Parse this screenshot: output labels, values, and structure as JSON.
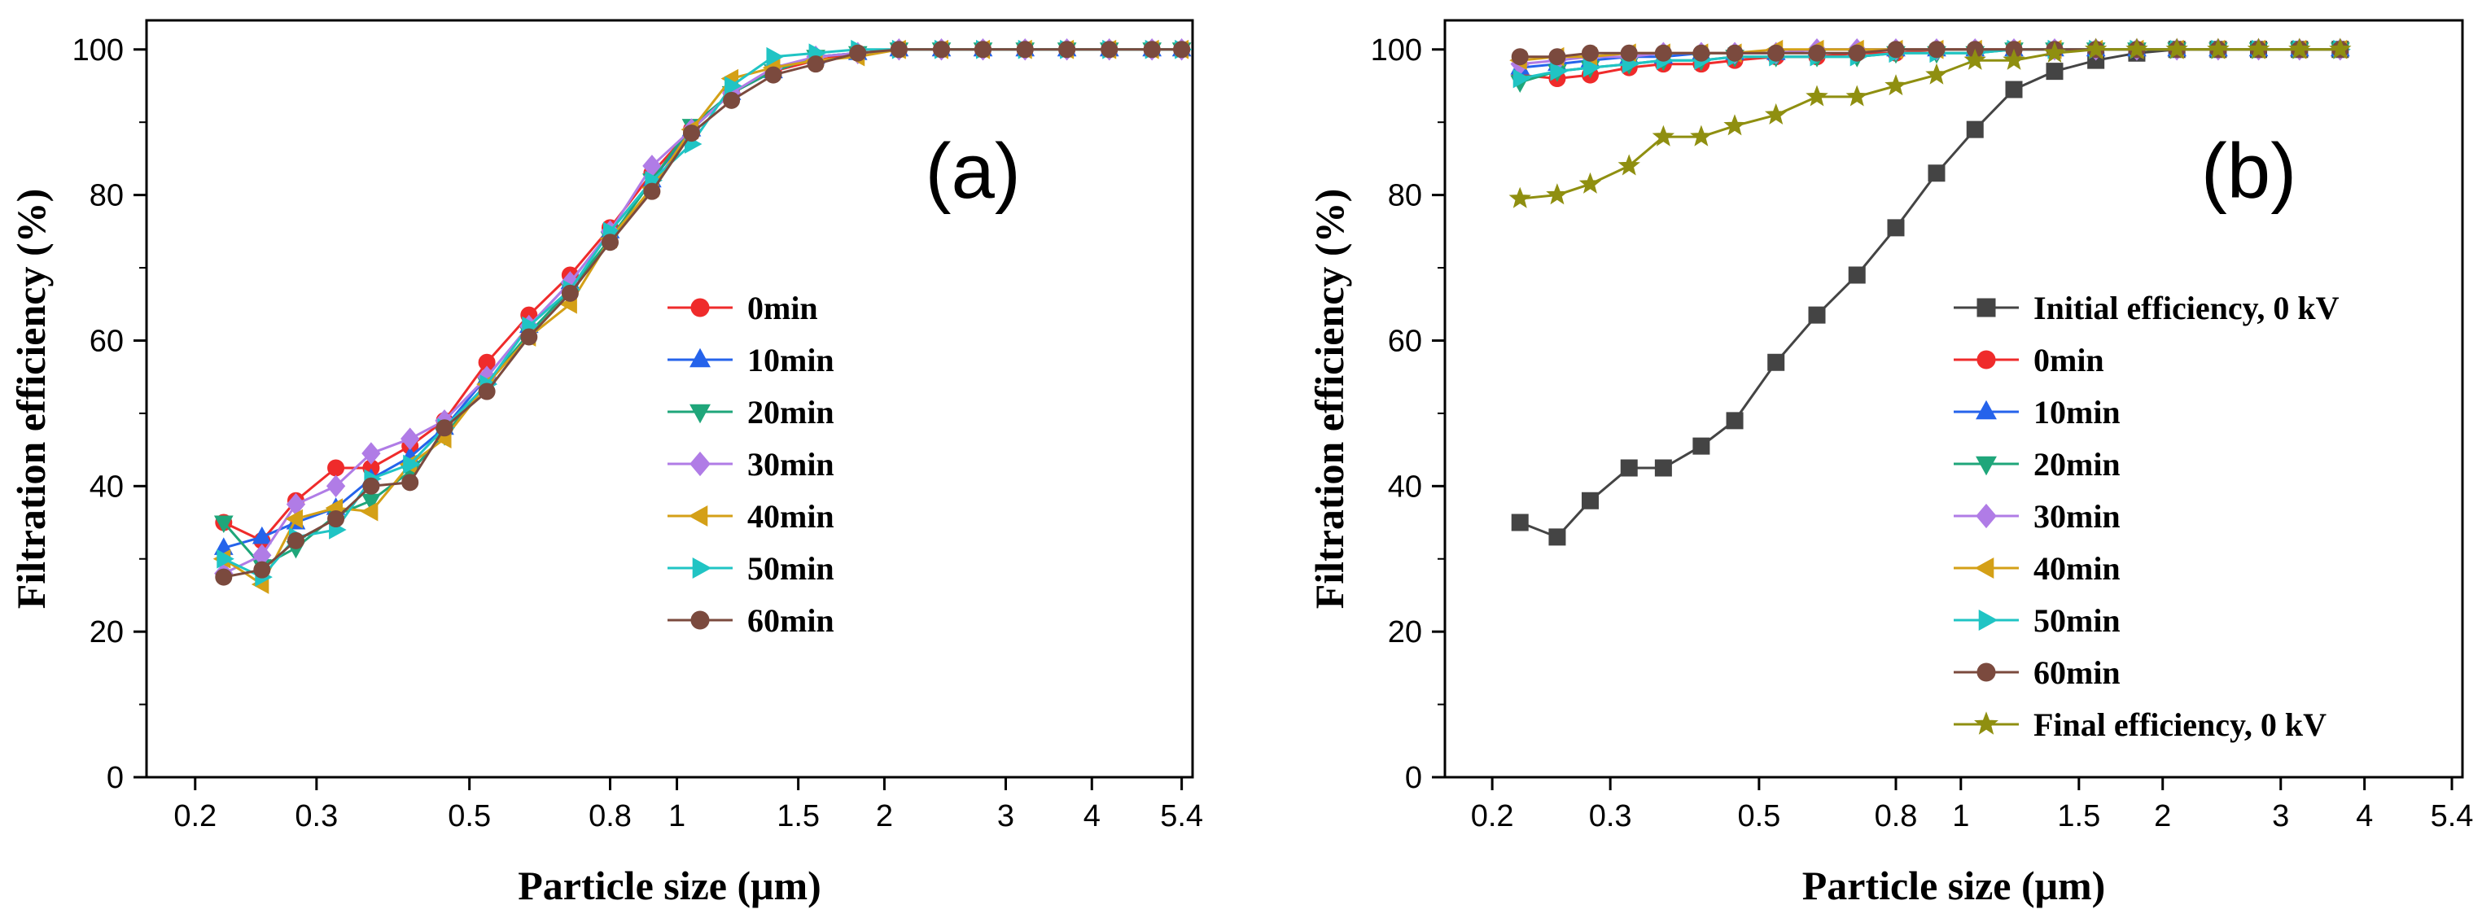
{
  "chart_data": [
    {
      "type": "line",
      "panel_label": "(a)",
      "xlabel": "Particle size (μm)",
      "ylabel": "Filtration efficiency (%)",
      "xscale": "log",
      "xlim": [
        0.17,
        5.6
      ],
      "ylim": [
        0,
        104
      ],
      "xticks": [
        0.2,
        0.3,
        0.5,
        0.8,
        1,
        1.5,
        2,
        3,
        4,
        5.4
      ],
      "xtick_labels": [
        "0.2",
        "0.3",
        "0.5",
        "0.8",
        "1",
        "1.5",
        "2",
        "3",
        "4",
        "5.4"
      ],
      "yticks": [
        0,
        20,
        40,
        60,
        80,
        100
      ],
      "ytick_labels": [
        "0",
        "20",
        "40",
        "60",
        "80",
        "100"
      ],
      "legend_position": "center-right",
      "series": [
        {
          "name": "0min",
          "color": "#ef2b2b",
          "marker": "circle",
          "x": [
            0.22,
            0.25,
            0.28,
            0.32,
            0.36,
            0.41,
            0.46,
            0.53,
            0.61,
            0.7,
            0.8,
            0.92,
            1.05,
            1.2,
            1.38,
            1.59,
            1.83,
            2.1,
            2.42,
            2.78,
            3.2,
            3.68,
            4.24,
            4.89,
            5.4
          ],
          "y": [
            35,
            32.5,
            38,
            42.5,
            42.5,
            45.5,
            49,
            57,
            63.5,
            69,
            75.5,
            83,
            89,
            94,
            97,
            98.5,
            99.5,
            100,
            100,
            100,
            100,
            100,
            100,
            100,
            100
          ]
        },
        {
          "name": "10min",
          "color": "#2563eb",
          "marker": "triangle-up",
          "x": [
            0.22,
            0.25,
            0.28,
            0.32,
            0.36,
            0.41,
            0.46,
            0.53,
            0.61,
            0.7,
            0.8,
            0.92,
            1.05,
            1.2,
            1.38,
            1.59,
            1.83,
            2.1,
            2.42,
            2.78,
            3.2,
            3.68,
            4.24,
            4.89,
            5.4
          ],
          "y": [
            31.5,
            33,
            35,
            37,
            41,
            44,
            48,
            55,
            62,
            68,
            75,
            82,
            89,
            94,
            97,
            99,
            99.5,
            100,
            100,
            100,
            100,
            100,
            100,
            100,
            100
          ]
        },
        {
          "name": "20min",
          "color": "#1fa67a",
          "marker": "triangle-down",
          "x": [
            0.22,
            0.25,
            0.28,
            0.32,
            0.36,
            0.41,
            0.46,
            0.53,
            0.61,
            0.7,
            0.8,
            0.92,
            1.05,
            1.2,
            1.38,
            1.59,
            1.83,
            2.1,
            2.42,
            2.78,
            3.2,
            3.68,
            4.24,
            4.89,
            5.4
          ],
          "y": [
            35,
            29,
            31.5,
            36,
            38,
            42,
            47,
            54,
            61,
            67,
            74,
            82,
            89.5,
            94,
            97,
            99,
            99.5,
            100,
            100,
            100,
            100,
            100,
            100,
            100,
            100
          ]
        },
        {
          "name": "30min",
          "color": "#b07ce6",
          "marker": "diamond",
          "x": [
            0.22,
            0.25,
            0.28,
            0.32,
            0.36,
            0.41,
            0.46,
            0.53,
            0.61,
            0.7,
            0.8,
            0.92,
            1.05,
            1.2,
            1.38,
            1.59,
            1.83,
            2.1,
            2.42,
            2.78,
            3.2,
            3.68,
            4.24,
            4.89,
            5.4
          ],
          "y": [
            28,
            30.5,
            37.5,
            40,
            44.5,
            46.5,
            49,
            55,
            62,
            68,
            75,
            84,
            89,
            94,
            97.5,
            99,
            99.5,
            100,
            100,
            100,
            100,
            100,
            100,
            100,
            100
          ]
        },
        {
          "name": "40min",
          "color": "#d4a017",
          "marker": "triangle-left",
          "x": [
            0.22,
            0.25,
            0.28,
            0.32,
            0.36,
            0.41,
            0.46,
            0.53,
            0.61,
            0.7,
            0.8,
            0.92,
            1.05,
            1.2,
            1.38,
            1.59,
            1.83,
            2.1,
            2.42,
            2.78,
            3.2,
            3.68,
            4.24,
            4.89,
            5.4
          ],
          "y": [
            30,
            26.5,
            35.5,
            37,
            36.5,
            43,
            46.5,
            54,
            60.5,
            65,
            74,
            81,
            89,
            96,
            97.5,
            98.5,
            99,
            100,
            100,
            100,
            100,
            100,
            100,
            100,
            100
          ]
        },
        {
          "name": "50min",
          "color": "#20c4c4",
          "marker": "triangle-right",
          "x": [
            0.22,
            0.25,
            0.28,
            0.32,
            0.36,
            0.41,
            0.46,
            0.53,
            0.61,
            0.7,
            0.8,
            0.92,
            1.05,
            1.2,
            1.38,
            1.59,
            1.83,
            2.1,
            2.42,
            2.78,
            3.2,
            3.68,
            4.24,
            4.89,
            5.4
          ],
          "y": [
            30,
            27.5,
            33,
            34,
            41,
            43,
            48,
            54,
            62,
            67,
            75,
            82,
            87,
            95,
            99,
            99.5,
            100,
            100,
            100,
            100,
            100,
            100,
            100,
            100,
            100
          ]
        },
        {
          "name": "60min",
          "color": "#7b4a3e",
          "marker": "circle",
          "x": [
            0.22,
            0.25,
            0.28,
            0.32,
            0.36,
            0.41,
            0.46,
            0.53,
            0.61,
            0.7,
            0.8,
            0.92,
            1.05,
            1.2,
            1.38,
            1.59,
            1.83,
            2.1,
            2.42,
            2.78,
            3.2,
            3.68,
            4.24,
            4.89,
            5.4
          ],
          "y": [
            27.5,
            28.5,
            32.5,
            35.5,
            40,
            40.5,
            48,
            53,
            60.5,
            66.5,
            73.5,
            80.5,
            88.5,
            93,
            96.5,
            98,
            99.5,
            100,
            100,
            100,
            100,
            100,
            100,
            100,
            100
          ]
        }
      ]
    },
    {
      "type": "line",
      "panel_label": "(b)",
      "xlabel": "Particle size (μm)",
      "ylabel": "Filtration efficiency (%)",
      "xscale": "log",
      "xlim": [
        0.17,
        5.6
      ],
      "ylim": [
        0,
        104
      ],
      "xticks": [
        0.2,
        0.3,
        0.5,
        0.8,
        1,
        1.5,
        2,
        3,
        4,
        5.4
      ],
      "xtick_labels": [
        "0.2",
        "0.3",
        "0.5",
        "0.8",
        "1",
        "1.5",
        "2",
        "3",
        "4",
        "5.4"
      ],
      "yticks": [
        0,
        20,
        40,
        60,
        80,
        100
      ],
      "ytick_labels": [
        "0",
        "20",
        "40",
        "60",
        "80",
        "100"
      ],
      "legend_position": "bottom-right",
      "series": [
        {
          "name": "Initial efficiency, 0 kV",
          "color": "#444444",
          "marker": "square",
          "x": [
            0.22,
            0.25,
            0.28,
            0.32,
            0.36,
            0.41,
            0.46,
            0.53,
            0.61,
            0.7,
            0.8,
            0.92,
            1.05,
            1.2,
            1.38,
            1.59,
            1.83,
            2.1,
            2.42,
            2.78,
            3.2,
            3.68
          ],
          "y": [
            35,
            33,
            38,
            42.5,
            42.5,
            45.5,
            49,
            57,
            63.5,
            69,
            75.5,
            83,
            89,
            94.5,
            97,
            98.5,
            99.5,
            100,
            100,
            100,
            100,
            100
          ]
        },
        {
          "name": "0min",
          "color": "#ef2b2b",
          "marker": "circle",
          "x": [
            0.22,
            0.25,
            0.28,
            0.32,
            0.36,
            0.41,
            0.46,
            0.53,
            0.61,
            0.7,
            0.8,
            0.92,
            1.05,
            1.2,
            1.38,
            1.59,
            1.83,
            2.1,
            2.42,
            2.78,
            3.2,
            3.68
          ],
          "y": [
            96.5,
            96,
            96.5,
            97.5,
            98,
            98,
            98.5,
            99,
            99,
            99.5,
            99.5,
            100,
            100,
            100,
            100,
            100,
            100,
            100,
            100,
            100,
            100,
            100
          ]
        },
        {
          "name": "10min",
          "color": "#2563eb",
          "marker": "triangle-up",
          "x": [
            0.22,
            0.25,
            0.28,
            0.32,
            0.36,
            0.41,
            0.46,
            0.53,
            0.61,
            0.7,
            0.8,
            0.92,
            1.05,
            1.2,
            1.38,
            1.59,
            1.83,
            2.1,
            2.42,
            2.78,
            3.2,
            3.68
          ],
          "y": [
            97.5,
            98,
            98.5,
            99,
            99,
            99.5,
            99.5,
            99.5,
            100,
            100,
            100,
            100,
            100,
            100,
            100,
            100,
            100,
            100,
            100,
            100,
            100,
            100
          ]
        },
        {
          "name": "20min",
          "color": "#1fa67a",
          "marker": "triangle-down",
          "x": [
            0.22,
            0.25,
            0.28,
            0.32,
            0.36,
            0.41,
            0.46,
            0.53,
            0.61,
            0.7,
            0.8,
            0.92,
            1.05,
            1.2,
            1.38,
            1.59,
            1.83,
            2.1,
            2.42,
            2.78,
            3.2,
            3.68
          ],
          "y": [
            95.5,
            97,
            97.5,
            98,
            98.5,
            98.5,
            99,
            99,
            99,
            99,
            99.5,
            99.5,
            99.5,
            100,
            100,
            100,
            100,
            100,
            100,
            100,
            100,
            100
          ]
        },
        {
          "name": "30min",
          "color": "#b07ce6",
          "marker": "diamond",
          "x": [
            0.22,
            0.25,
            0.28,
            0.32,
            0.36,
            0.41,
            0.46,
            0.53,
            0.61,
            0.7,
            0.8,
            0.92,
            1.05,
            1.2,
            1.38,
            1.59,
            1.83,
            2.1,
            2.42,
            2.78,
            3.2,
            3.68
          ],
          "y": [
            98,
            98.5,
            99,
            99,
            99.5,
            99.5,
            99.5,
            99.5,
            100,
            100,
            100,
            100,
            100,
            100,
            100,
            100,
            100,
            100,
            100,
            100,
            100,
            100
          ]
        },
        {
          "name": "40min",
          "color": "#d4a017",
          "marker": "triangle-left",
          "x": [
            0.22,
            0.25,
            0.28,
            0.32,
            0.36,
            0.41,
            0.46,
            0.53,
            0.61,
            0.7,
            0.8,
            0.92,
            1.05,
            1.2,
            1.38,
            1.59,
            1.83,
            2.1,
            2.42,
            2.78,
            3.2,
            3.68
          ],
          "y": [
            98.5,
            99,
            99,
            99.5,
            99.5,
            99.5,
            99.5,
            100,
            100,
            100,
            100,
            100,
            100,
            100,
            100,
            100,
            100,
            100,
            100,
            100,
            100,
            100
          ]
        },
        {
          "name": "50min",
          "color": "#20c4c4",
          "marker": "triangle-right",
          "x": [
            0.22,
            0.25,
            0.28,
            0.32,
            0.36,
            0.41,
            0.46,
            0.53,
            0.61,
            0.7,
            0.8,
            0.92,
            1.05,
            1.2,
            1.38,
            1.59,
            1.83,
            2.1,
            2.42,
            2.78,
            3.2,
            3.68
          ],
          "y": [
            96,
            97,
            97.5,
            98,
            98.5,
            98.5,
            99,
            99,
            99,
            99,
            99.5,
            99.5,
            99.5,
            100,
            100,
            100,
            100,
            100,
            100,
            100,
            100,
            100
          ]
        },
        {
          "name": "60min",
          "color": "#7b4a3e",
          "marker": "circle",
          "x": [
            0.22,
            0.25,
            0.28,
            0.32,
            0.36,
            0.41,
            0.46,
            0.53,
            0.61,
            0.7,
            0.8,
            0.92,
            1.05,
            1.2,
            1.38,
            1.59,
            1.83,
            2.1,
            2.42,
            2.78,
            3.2,
            3.68
          ],
          "y": [
            99,
            99,
            99.5,
            99.5,
            99.5,
            99.5,
            99.5,
            99.5,
            99.5,
            99.5,
            100,
            100,
            100,
            100,
            100,
            100,
            100,
            100,
            100,
            100,
            100,
            100
          ]
        },
        {
          "name": "Final efficiency, 0 kV",
          "color": "#8f8f10",
          "marker": "star",
          "x": [
            0.22,
            0.25,
            0.28,
            0.32,
            0.36,
            0.41,
            0.46,
            0.53,
            0.61,
            0.7,
            0.8,
            0.92,
            1.05,
            1.2,
            1.38,
            1.59,
            1.83,
            2.1,
            2.42,
            2.78,
            3.2,
            3.68
          ],
          "y": [
            79.5,
            80,
            81.5,
            84,
            88,
            88,
            89.5,
            91,
            93.5,
            93.5,
            95,
            96.5,
            98.5,
            98.5,
            99.5,
            100,
            100,
            100,
            100,
            100,
            100,
            100
          ]
        }
      ]
    }
  ]
}
